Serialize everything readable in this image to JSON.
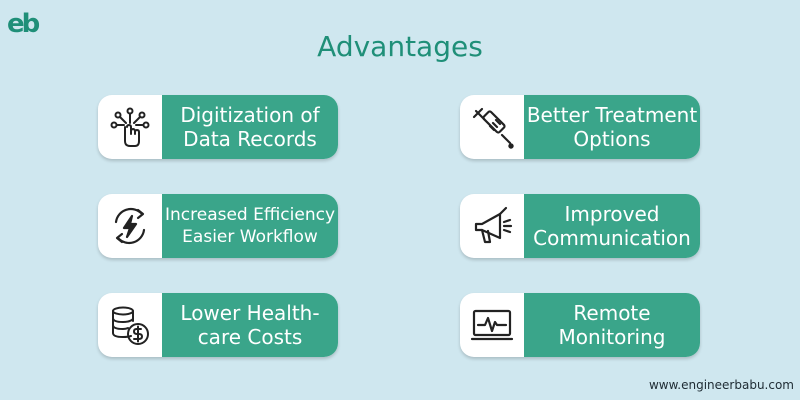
{
  "logo_text": "eb",
  "title": "Advantages",
  "cards": [
    {
      "label": "Digitization of\nData Records",
      "icon": "digital-hand-icon"
    },
    {
      "label": "Better Treatment\nOptions",
      "icon": "syringe-icon"
    },
    {
      "label": "Increased Efficiency\nEasier Workflow",
      "icon": "energy-cycle-icon"
    },
    {
      "label": "Improved\nCommunication",
      "icon": "megaphone-icon"
    },
    {
      "label": "Lower Health-\ncare Costs",
      "icon": "coins-dollar-icon"
    },
    {
      "label": "Remote\nMonitoring",
      "icon": "monitor-pulse-icon"
    }
  ],
  "footer": "www.engineerbabu.com",
  "colors": {
    "background": "#cfe7ef",
    "accent": "#3aa58a",
    "title": "#1f8f78"
  }
}
